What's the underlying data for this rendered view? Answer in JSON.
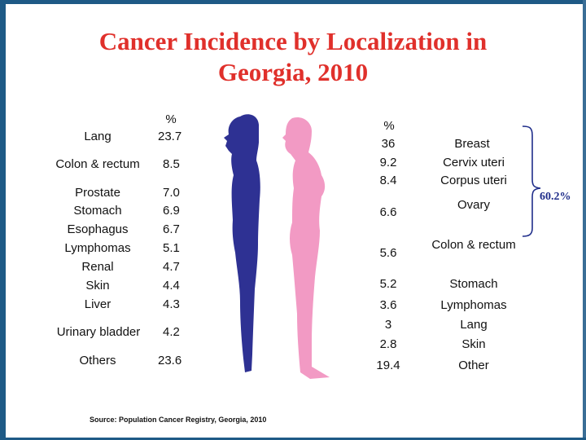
{
  "title_line1": "Cancer Incidence by Localization in",
  "title_line2": "Georgia, 2010",
  "male": {
    "pct_header": "%",
    "rows": [
      {
        "label": "Lang",
        "value": "23.7"
      },
      {
        "label": "Colon & rectum",
        "value": "8.5"
      },
      {
        "label": "Prostate",
        "value": "7.0"
      },
      {
        "label": "Stomach",
        "value": "6.9"
      },
      {
        "label": "Esophagus",
        "value": "6.7"
      },
      {
        "label": "Lymphomas",
        "value": "5.1"
      },
      {
        "label": "Renal",
        "value": "4.7"
      },
      {
        "label": "Skin",
        "value": "4.4"
      },
      {
        "label": "Liver",
        "value": "4.3"
      },
      {
        "label": "Urinary bladder",
        "value": "4.2"
      },
      {
        "label": "Others",
        "value": "23.6"
      }
    ]
  },
  "female": {
    "pct_header": "%",
    "rows": [
      {
        "label": "Breast",
        "value": "36"
      },
      {
        "label": "Cervix uteri",
        "value": "9.2"
      },
      {
        "label": "Corpus uteri",
        "value": "8.4"
      },
      {
        "label": "Ovary",
        "value": "6.6"
      },
      {
        "label": "Colon & rectum",
        "value": "5.6"
      },
      {
        "label": "Stomach",
        "value": "5.2"
      },
      {
        "label": "Lymphomas",
        "value": "3.6"
      },
      {
        "label": "Lang",
        "value": "3"
      },
      {
        "label": "Skin",
        "value": "2.8"
      },
      {
        "label": "Other",
        "value": "19.4"
      }
    ],
    "bracket_total": "60.2%"
  },
  "source": "Source: Population  Cancer  Registry,    Georgia,  2010",
  "colors": {
    "title": "#e0302b",
    "male_figure": "#2e3193",
    "female_figure": "#f29ac4",
    "bracket": "#1f2d8a",
    "frame": "#1e5a86"
  }
}
